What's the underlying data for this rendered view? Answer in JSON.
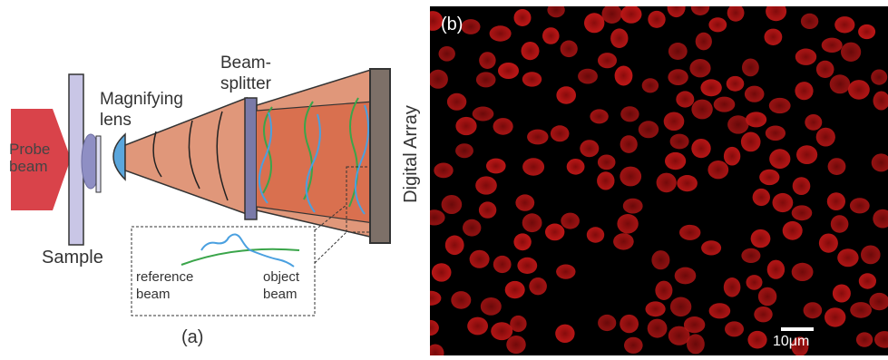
{
  "panel_a": {
    "probe_beam_label": "Probe beam",
    "probe_label_line1": "Probe",
    "probe_label_line2": "beam",
    "sample_label": "Sample",
    "lens_label_line1": "Magnifying",
    "lens_label_line2": "lens",
    "beamsplitter_label_line1": "Beam-",
    "beamsplitter_label_line2": "splitter",
    "detector_label": "Digital Array",
    "inset_reference_line1": "reference",
    "inset_reference_line2": "beam",
    "inset_object_line1": "object",
    "inset_object_line2": "beam",
    "caption": "(a)",
    "colors": {
      "probe_beam": "#d9434a",
      "sample_slide": "#c9c6e6",
      "lens": "#5aa6dc",
      "cone": "#e0977a",
      "cone_dark": "#d9704f",
      "beamsplitter": "#7a7aa8",
      "detector": "#7d7068",
      "reference_wave": "#3aa54a",
      "object_wave": "#4aa0e0"
    }
  },
  "panel_b": {
    "caption": "(b)",
    "scale_bar_label": "10μm",
    "colors": {
      "background": "#000000",
      "cell": "#b01010"
    }
  }
}
